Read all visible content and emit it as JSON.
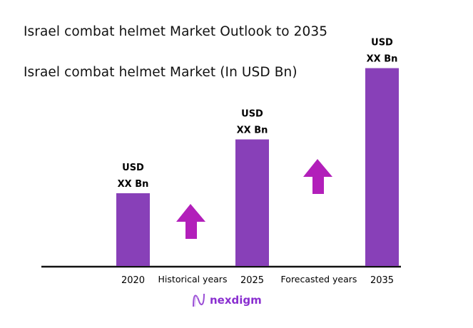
{
  "chart_data": {
    "type": "bar",
    "title": "Israel combat helmet Market Outlook to 2035",
    "subtitle": "Israel combat helmet Market (In USD Bn)",
    "categories": [
      "2020",
      "2025",
      "2035"
    ],
    "values": [
      1.0,
      1.74,
      2.72
    ],
    "value_labels": [
      {
        "line1": "USD",
        "line2": "XX Bn"
      },
      {
        "line1": "USD",
        "line2": "XX Bn"
      },
      {
        "line1": "USD",
        "line2": "XX Bn"
      }
    ],
    "period_labels": [
      "Historical years",
      "Forecasted years"
    ],
    "grid": false,
    "bar_color": "#8840b8",
    "arrow_color": "#b21fba",
    "axis_color": "#111111"
  },
  "logo": {
    "text": "nexdigm",
    "color": "#8a2fd0"
  }
}
